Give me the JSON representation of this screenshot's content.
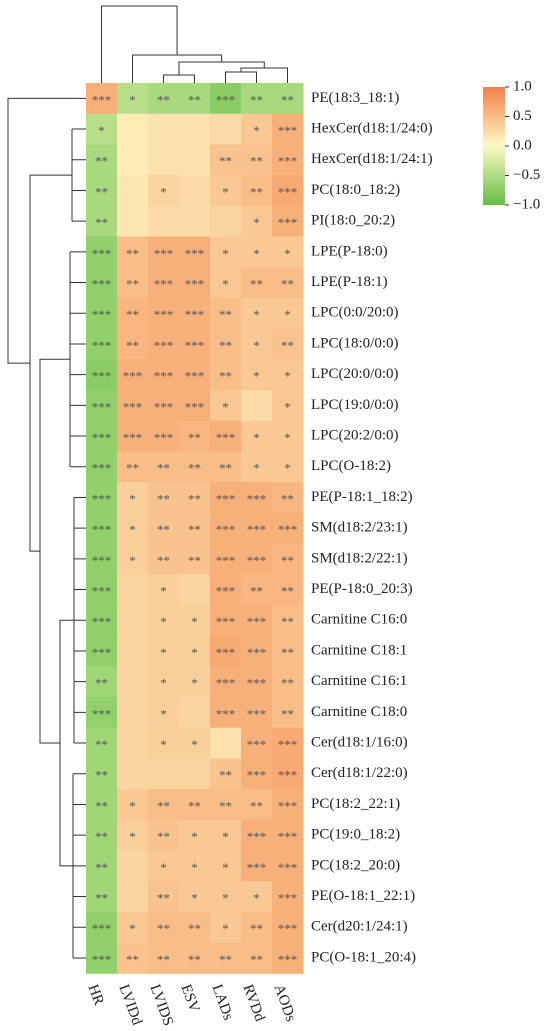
{
  "chart_data": {
    "type": "heatmap",
    "rows": [
      "PE(18:3_18:1)",
      "HexCer(d18:1/24:0)",
      "HexCer(d18:1/24:1)",
      "PC(18:0_18:2)",
      "PI(18:0_20:2)",
      "LPE(P-18:0)",
      "LPE(P-18:1)",
      "LPC(0:0/20:0)",
      "LPC(18:0/0:0)",
      "LPC(20:0/0:0)",
      "LPC(19:0/0:0)",
      "LPC(20:2/0:0)",
      "LPC(O-18:2)",
      "PE(P-18:1_18:2)",
      "SM(d18:2/23:1)",
      "SM(d18:2/22:1)",
      "PE(P-18:0_20:3)",
      "Carnitine C16:0",
      "Carnitine C18:1",
      "Carnitine C16:1",
      "Carnitine C18:0",
      "Cer(d18:1/16:0)",
      "Cer(d18:1/22:0)",
      "PC(18:2_22:1)",
      "PC(19:0_18:2)",
      "PC(18:2_20:0)",
      "PE(O-18:1_22:1)",
      "Cer(d20:1/24:1)",
      "PC(O-18:1_20:4)"
    ],
    "columns": [
      "HR",
      "LVIDd",
      "LVIDS",
      "ESV",
      "LADs",
      "RVDd",
      "AODs"
    ],
    "values": [
      [
        0.6,
        -0.45,
        -0.55,
        -0.55,
        -0.75,
        -0.55,
        -0.55
      ],
      [
        -0.45,
        0.1,
        0.2,
        0.2,
        0.25,
        0.4,
        0.6
      ],
      [
        -0.55,
        0.1,
        0.2,
        0.2,
        0.45,
        0.45,
        0.6
      ],
      [
        -0.55,
        0.15,
        0.3,
        0.25,
        0.4,
        0.5,
        0.65
      ],
      [
        -0.55,
        0.15,
        0.25,
        0.25,
        0.3,
        0.4,
        0.6
      ],
      [
        -0.7,
        0.5,
        0.6,
        0.6,
        0.4,
        0.4,
        0.4
      ],
      [
        -0.7,
        0.5,
        0.6,
        0.6,
        0.4,
        0.5,
        0.5
      ],
      [
        -0.7,
        0.55,
        0.6,
        0.6,
        0.5,
        0.4,
        0.4
      ],
      [
        -0.7,
        0.55,
        0.6,
        0.6,
        0.5,
        0.4,
        0.45
      ],
      [
        -0.75,
        0.6,
        0.6,
        0.6,
        0.5,
        0.4,
        0.4
      ],
      [
        -0.7,
        0.6,
        0.6,
        0.6,
        0.4,
        0.25,
        0.4
      ],
      [
        -0.7,
        0.6,
        0.6,
        0.55,
        0.6,
        0.4,
        0.4
      ],
      [
        -0.7,
        0.5,
        0.5,
        0.5,
        0.5,
        0.4,
        0.4
      ],
      [
        -0.7,
        0.35,
        0.45,
        0.45,
        0.6,
        0.6,
        0.55
      ],
      [
        -0.7,
        0.35,
        0.45,
        0.45,
        0.6,
        0.6,
        0.6
      ],
      [
        -0.7,
        0.35,
        0.45,
        0.45,
        0.6,
        0.6,
        0.55
      ],
      [
        -0.7,
        0.3,
        0.35,
        0.3,
        0.6,
        0.55,
        0.55
      ],
      [
        -0.7,
        0.3,
        0.35,
        0.35,
        0.6,
        0.6,
        0.5
      ],
      [
        -0.7,
        0.3,
        0.35,
        0.35,
        0.65,
        0.6,
        0.5
      ],
      [
        -0.6,
        0.3,
        0.35,
        0.35,
        0.6,
        0.6,
        0.5
      ],
      [
        -0.7,
        0.3,
        0.35,
        0.3,
        0.6,
        0.6,
        0.5
      ],
      [
        -0.6,
        0.3,
        0.35,
        0.35,
        0.2,
        0.6,
        0.65
      ],
      [
        -0.6,
        0.3,
        0.3,
        0.3,
        0.45,
        0.6,
        0.65
      ],
      [
        -0.6,
        0.4,
        0.5,
        0.5,
        0.5,
        0.5,
        0.6
      ],
      [
        -0.6,
        0.35,
        0.45,
        0.4,
        0.4,
        0.6,
        0.6
      ],
      [
        -0.6,
        0.3,
        0.4,
        0.4,
        0.4,
        0.6,
        0.6
      ],
      [
        -0.6,
        0.3,
        0.45,
        0.4,
        0.4,
        0.4,
        0.6
      ],
      [
        -0.7,
        0.4,
        0.5,
        0.5,
        0.4,
        0.5,
        0.6
      ],
      [
        -0.7,
        0.45,
        0.5,
        0.5,
        0.5,
        0.5,
        0.6
      ]
    ],
    "value_labels": [
      [
        "***",
        "*",
        "**",
        "**",
        "***",
        "**",
        "**"
      ],
      [
        "*",
        null,
        null,
        null,
        null,
        "*",
        "***"
      ],
      [
        "**",
        null,
        null,
        null,
        "**",
        "**",
        "***"
      ],
      [
        "**",
        null,
        "*",
        null,
        "*",
        "**",
        "***"
      ],
      [
        "**",
        null,
        null,
        null,
        null,
        "*",
        "***"
      ],
      [
        "***",
        "**",
        "***",
        "***",
        "*",
        "*",
        "*"
      ],
      [
        "***",
        "**",
        "***",
        "***",
        "*",
        "**",
        "**"
      ],
      [
        "***",
        "**",
        "***",
        "***",
        "**",
        "*",
        "*"
      ],
      [
        "***",
        "**",
        "***",
        "***",
        "**",
        "*",
        "**"
      ],
      [
        "***",
        "***",
        "***",
        "***",
        "**",
        "*",
        "*"
      ],
      [
        "***",
        "***",
        "***",
        "***",
        "*",
        null,
        "*"
      ],
      [
        "***",
        "***",
        "***",
        "**",
        "***",
        "*",
        "*"
      ],
      [
        "***",
        "**",
        "**",
        "**",
        "**",
        "*",
        "*"
      ],
      [
        "***",
        "*",
        "**",
        "**",
        "***",
        "***",
        "**"
      ],
      [
        "***",
        "*",
        "**",
        "**",
        "***",
        "***",
        "***"
      ],
      [
        "***",
        "*",
        "**",
        "**",
        "***",
        "***",
        "**"
      ],
      [
        "***",
        null,
        "*",
        null,
        "***",
        "**",
        "**"
      ],
      [
        "***",
        null,
        "*",
        "*",
        "***",
        "***",
        "**"
      ],
      [
        "***",
        null,
        "*",
        "*",
        "***",
        "***",
        "**"
      ],
      [
        "**",
        null,
        "*",
        "*",
        "***",
        "***",
        "**"
      ],
      [
        "***",
        null,
        "*",
        null,
        "***",
        "***",
        "**"
      ],
      [
        "**",
        null,
        "*",
        "*",
        null,
        "***",
        "***"
      ],
      [
        "**",
        null,
        null,
        null,
        "**",
        "***",
        "***"
      ],
      [
        "**",
        "*",
        "**",
        "**",
        "**",
        "**",
        "***"
      ],
      [
        "**",
        "*",
        "**",
        "*",
        "*",
        "***",
        "***"
      ],
      [
        "**",
        null,
        "*",
        "*",
        "*",
        "***",
        "***"
      ],
      [
        "**",
        null,
        "**",
        "*",
        "*",
        "*",
        "***"
      ],
      [
        "***",
        "*",
        "**",
        "**",
        "*",
        "**",
        "***"
      ],
      [
        "***",
        "**",
        "**",
        "**",
        "**",
        "**",
        "***"
      ]
    ],
    "colors": [
      "#63be45",
      "#fdf9c3",
      "#f5804a"
    ],
    "clim": [
      -1,
      1
    ],
    "cticks": [
      {
        "value": 1,
        "label": "1.0"
      },
      0.5,
      {
        "value": 0,
        "label": "0.0"
      },
      {
        "value": -0.5,
        "label": "−0.5"
      },
      {
        "value": -1,
        "label": "−1.0"
      }
    ]
  }
}
